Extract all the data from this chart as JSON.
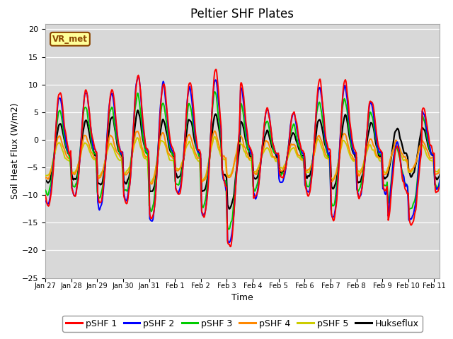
{
  "title": "Peltier SHF Plates",
  "xlabel": "Time",
  "ylabel": "Soil Heat Flux (W/m2)",
  "ylim": [
    -25,
    21
  ],
  "xtick_labels": [
    "Jan 27",
    "Jan 28",
    "Jan 29",
    "Jan 30",
    "Jan 31",
    "Feb 1",
    "Feb 2",
    "Feb 3",
    "Feb 4",
    "Feb 5",
    "Feb 6",
    "Feb 7",
    "Feb 8",
    "Feb 9",
    "Feb 10",
    "Feb 11"
  ],
  "legend_labels": [
    "pSHF 1",
    "pSHF 2",
    "pSHF 3",
    "pSHF 4",
    "pSHF 5",
    "Hukseflux"
  ],
  "legend_colors": [
    "#ff0000",
    "#0000ff",
    "#00cc00",
    "#ff8800",
    "#cccc00",
    "#000000"
  ],
  "annotation_text": "VR_met",
  "title_fontsize": 12,
  "axis_fontsize": 8,
  "legend_fontsize": 9
}
